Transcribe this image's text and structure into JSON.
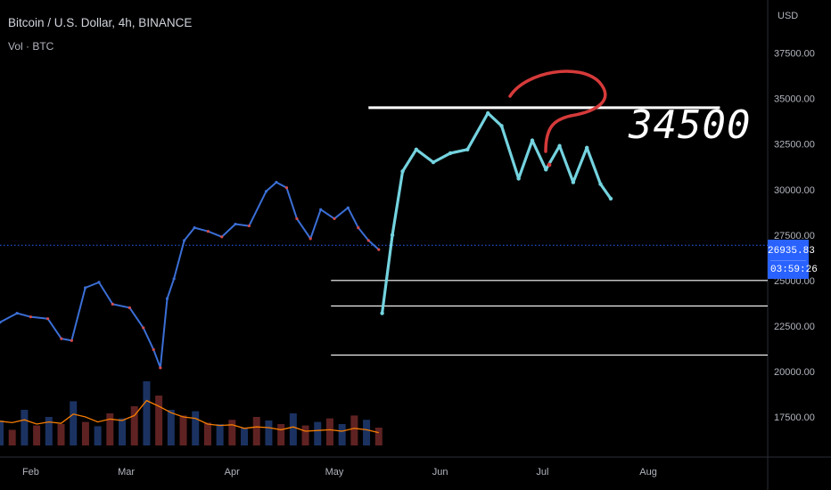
{
  "header": {
    "title": "Bitcoin / U.S. Dollar, 4h, BINANCE",
    "volume_label": "Vol · BTC"
  },
  "price_axis": {
    "unit": "USD",
    "current_price": "26935.83",
    "countdown": "03:59:26"
  },
  "annotation": {
    "level_text": "34500",
    "question_mark": "?"
  },
  "colors": {
    "background": "#000000",
    "history_candles_up": "#3b6fd6",
    "history_candles_down": "#d24b4b",
    "projection": "#74d3df",
    "volume_ma": "#f57c00",
    "current_price_line": "#2962ff",
    "question_mark": "#d63a3a",
    "level_lines": "#ffffff"
  },
  "chart_data": {
    "type": "line",
    "title": "Bitcoin / U.S. Dollar, 4h, BINANCE",
    "ylabel": "USD",
    "ylim": [
      15000,
      39000
    ],
    "x_range": [
      "2023-01-23",
      "2023-09-05"
    ],
    "x_ticks": [
      {
        "label": "Feb",
        "date": "2023-02-01"
      },
      {
        "label": "Mar",
        "date": "2023-03-01"
      },
      {
        "label": "Apr",
        "date": "2023-04-01"
      },
      {
        "label": "May",
        "date": "2023-05-01"
      },
      {
        "label": "Jun",
        "date": "2023-06-01"
      },
      {
        "label": "Jul",
        "date": "2023-07-01"
      },
      {
        "label": "Aug",
        "date": "2023-08-01"
      }
    ],
    "y_ticks": [
      17500,
      20000,
      22500,
      25000,
      27500,
      30000,
      32500,
      35000,
      37500
    ],
    "y_tick_labels": [
      "17500.00",
      "20000.00",
      "22500.00",
      "25000.00",
      "27500.00",
      "30000.00",
      "32500.00",
      "35000.00",
      "37500.00"
    ],
    "series": [
      {
        "kind": "price-history",
        "x": [
          "2023-01-23",
          "2023-01-28",
          "2023-02-01",
          "2023-02-06",
          "2023-02-10",
          "2023-02-13",
          "2023-02-17",
          "2023-02-21",
          "2023-02-25",
          "2023-03-02",
          "2023-03-06",
          "2023-03-09",
          "2023-03-11",
          "2023-03-13",
          "2023-03-15",
          "2023-03-18",
          "2023-03-21",
          "2023-03-25",
          "2023-03-29",
          "2023-04-02",
          "2023-04-06",
          "2023-04-11",
          "2023-04-14",
          "2023-04-17",
          "2023-04-20",
          "2023-04-24",
          "2023-04-27",
          "2023-05-01",
          "2023-05-05",
          "2023-05-08",
          "2023-05-11",
          "2023-05-14"
        ],
        "y": [
          22700,
          23200,
          23000,
          22900,
          21800,
          21700,
          24600,
          24900,
          23700,
          23500,
          22400,
          21200,
          20200,
          24000,
          25100,
          27200,
          27900,
          27700,
          27400,
          28100,
          28000,
          29900,
          30400,
          30100,
          28400,
          27300,
          28900,
          28400,
          29000,
          27900,
          27200,
          26700
        ]
      },
      {
        "kind": "projection",
        "x": [
          "2023-05-15",
          "2023-05-18",
          "2023-05-21",
          "2023-05-25",
          "2023-05-30",
          "2023-06-04",
          "2023-06-09",
          "2023-06-15",
          "2023-06-19",
          "2023-06-24",
          "2023-06-28",
          "2023-07-02",
          "2023-07-06",
          "2023-07-10",
          "2023-07-14",
          "2023-07-18",
          "2023-07-21"
        ],
        "y": [
          23200,
          27500,
          31000,
          32200,
          31500,
          32000,
          32200,
          34200,
          33500,
          30600,
          32700,
          31100,
          32400,
          30400,
          32300,
          30300,
          29500
        ]
      }
    ],
    "horizontal_levels": [
      {
        "value": 34500,
        "from": "2023-05-11",
        "to": "2023-08-22",
        "label": "34500"
      },
      {
        "value": 25000,
        "from": "2023-04-30",
        "to": "2023-09-05"
      },
      {
        "value": 23600,
        "from": "2023-04-30",
        "to": "2023-09-05"
      },
      {
        "value": 20900,
        "from": "2023-04-30",
        "to": "2023-09-05"
      }
    ],
    "current_price_line": 26935.83,
    "volume": {
      "values": [
        0.35,
        0.22,
        0.5,
        0.28,
        0.4,
        0.3,
        0.62,
        0.33,
        0.27,
        0.45,
        0.38,
        0.55,
        0.9,
        0.7,
        0.5,
        0.42,
        0.48,
        0.32,
        0.3,
        0.36,
        0.25,
        0.4,
        0.35,
        0.3,
        0.45,
        0.28,
        0.33,
        0.38,
        0.3,
        0.42,
        0.36,
        0.25
      ],
      "ma": [
        0.34,
        0.32,
        0.36,
        0.3,
        0.33,
        0.31,
        0.44,
        0.4,
        0.33,
        0.37,
        0.35,
        0.42,
        0.63,
        0.55,
        0.46,
        0.4,
        0.38,
        0.3,
        0.28,
        0.29,
        0.24,
        0.26,
        0.25,
        0.22,
        0.26,
        0.2,
        0.21,
        0.22,
        0.2,
        0.24,
        0.22,
        0.18
      ]
    }
  }
}
